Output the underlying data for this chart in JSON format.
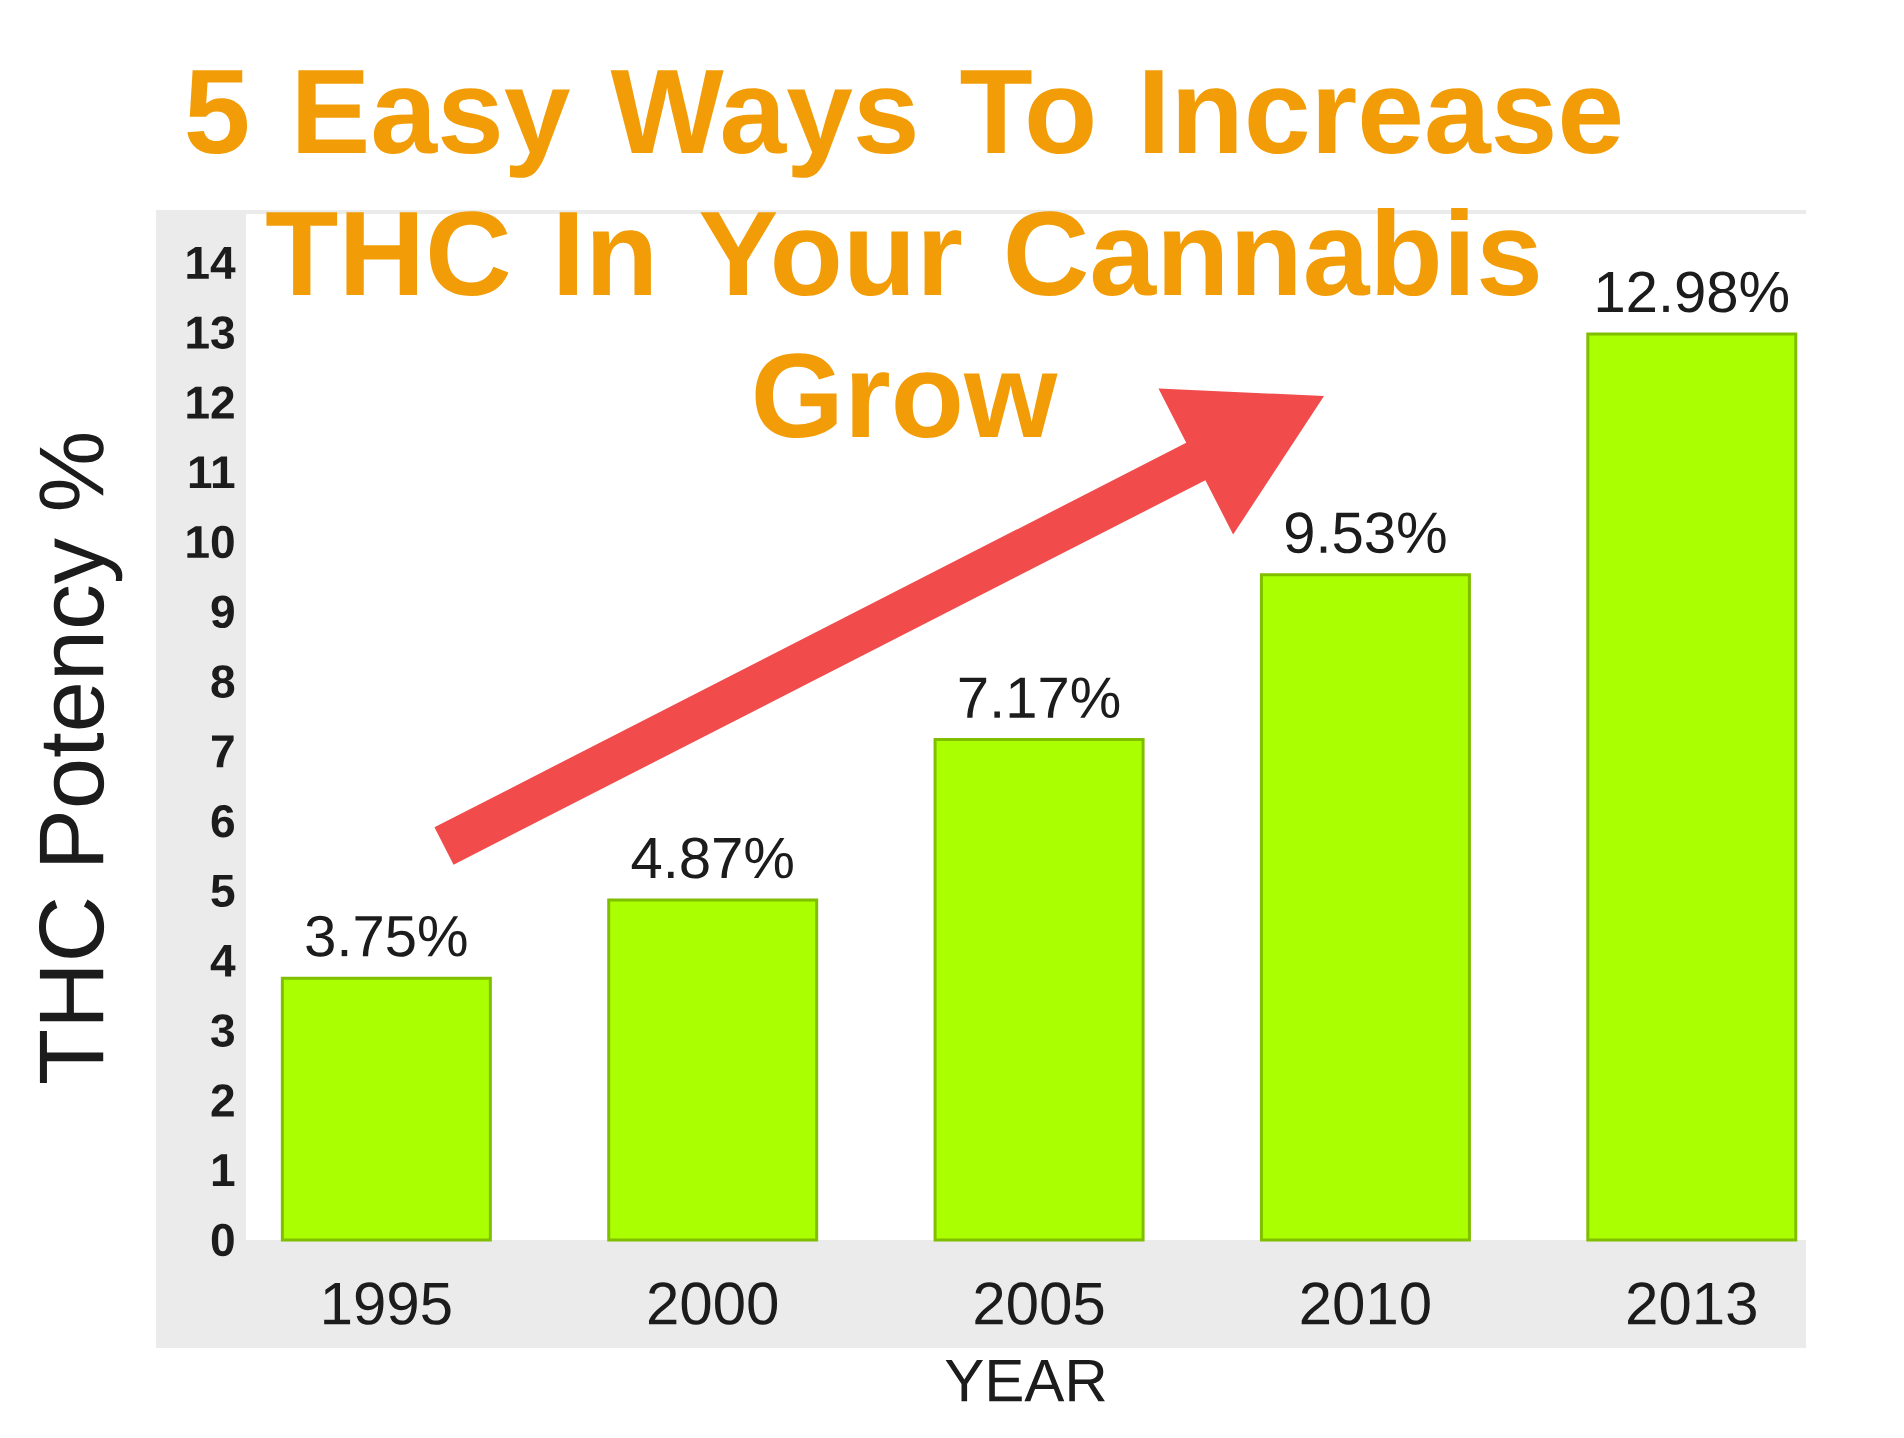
{
  "chart_data": {
    "type": "bar",
    "title": "5 Easy Ways To Increase THC In Your Cannabis Grow",
    "xlabel": "YEAR",
    "ylabel": "THC Potency %",
    "categories": [
      "1995",
      "2000",
      "2005",
      "2010",
      "2013"
    ],
    "values": [
      3.75,
      4.87,
      7.17,
      9.53,
      12.98
    ],
    "value_labels": [
      "3.75%",
      "4.87%",
      "7.17%",
      "9.53%",
      "12.98%"
    ],
    "color": "#aaff00",
    "ylim": [
      0,
      14.7
    ],
    "yticks": [
      0,
      1,
      2,
      3,
      4,
      5,
      6,
      7,
      8,
      9,
      10,
      11,
      12,
      13,
      14
    ]
  }
}
